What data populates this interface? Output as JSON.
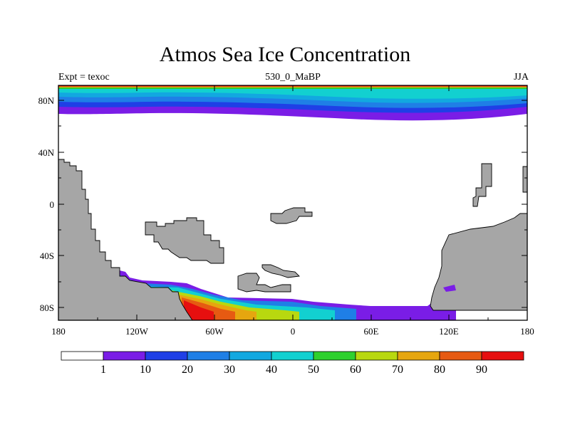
{
  "title": "Atmos Sea Ice Concentration",
  "left_label": "Expt = texoc",
  "center_label": "530_0_MaBP",
  "right_label": "JJA",
  "lat_ticks": [
    "80N",
    "40N",
    "0",
    "40S",
    "80S"
  ],
  "lon_ticks": [
    "180",
    "120W",
    "60W",
    "0",
    "60E",
    "120E",
    "180"
  ],
  "colorbar": {
    "labels": [
      "1",
      "10",
      "20",
      "30",
      "40",
      "50",
      "60",
      "70",
      "80",
      "90"
    ],
    "colors": [
      "#ffffff",
      "#7a1de6",
      "#1f3fe6",
      "#1f7fe6",
      "#12a8e0",
      "#12d0d0",
      "#2ed02e",
      "#b8d80f",
      "#e6a60f",
      "#e65a12",
      "#e60f0f"
    ]
  },
  "colors": {
    "land": "#a6a6a6",
    "ocean": "#ffffff"
  }
}
